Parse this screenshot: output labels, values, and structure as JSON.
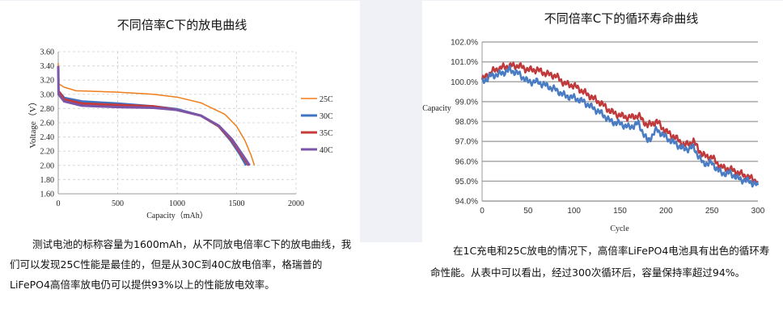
{
  "left_panel": {
    "paragraph": "测试电池的标称容量为1600mAh，从不同放电倍率C下的放电曲线，我们可以发现25C性能是最佳的，但是从30C到40C放电倍率，格瑞普的LiFePO4高倍率放电仍可以提供93%以上的性能放电效率。"
  },
  "right_panel": {
    "paragraph": "在1C充电和25C放电的情况下，高倍率LiFePO4电池具有出色的循环寿命性能。从表中可以看出，经过300次循环后，容量保持率超过94%。"
  },
  "chart_data": [
    {
      "type": "line",
      "title": "不同倍率C下的放电曲线",
      "xlabel": "Capacity（mAh）",
      "ylabel": "Voltage（V）",
      "xlim": [
        0,
        2000
      ],
      "ylim": [
        1.6,
        3.6
      ],
      "xticks": [
        "0",
        "500",
        "1000",
        "1500",
        "2000"
      ],
      "yticks": [
        "1.60",
        "1.80",
        "2.00",
        "2.20",
        "2.40",
        "2.60",
        "2.80",
        "3.00",
        "3.20",
        "3.40",
        "3.60"
      ],
      "grid": "dashed",
      "legend_position": "right",
      "series": [
        {
          "name": "25C",
          "color": "#f07d1a",
          "x": [
            0,
            2,
            50,
            150,
            500,
            800,
            1000,
            1200,
            1400,
            1500,
            1570,
            1620,
            1650
          ],
          "y": [
            3.44,
            3.15,
            3.1,
            3.05,
            3.03,
            3.0,
            2.96,
            2.88,
            2.72,
            2.55,
            2.35,
            2.15,
            2.0
          ]
        },
        {
          "name": "30C",
          "color": "#3f74c4",
          "x": [
            0,
            50,
            200,
            500,
            800,
            1000,
            1200,
            1350,
            1450,
            1530,
            1580
          ],
          "y": [
            3.05,
            2.95,
            2.9,
            2.87,
            2.83,
            2.79,
            2.7,
            2.55,
            2.35,
            2.15,
            2.0
          ]
        },
        {
          "name": "35C",
          "color": "#c63a3a",
          "x": [
            0,
            50,
            200,
            500,
            800,
            1000,
            1200,
            1350,
            1460,
            1540,
            1600
          ],
          "y": [
            3.05,
            2.93,
            2.87,
            2.85,
            2.83,
            2.78,
            2.7,
            2.55,
            2.35,
            2.15,
            2.0
          ]
        },
        {
          "name": "40C",
          "color": "#7a55a8",
          "x": [
            0,
            3,
            50,
            200,
            500,
            800,
            1000,
            1200,
            1350,
            1460,
            1550,
            1610
          ],
          "y": [
            3.4,
            3.0,
            2.9,
            2.84,
            2.82,
            2.81,
            2.78,
            2.7,
            2.56,
            2.37,
            2.15,
            2.0
          ]
        }
      ]
    },
    {
      "type": "line",
      "title": "不同倍率C下的循环寿命曲线",
      "xlabel": "Cycle",
      "ylabel": "Capacity",
      "xlim": [
        0,
        300
      ],
      "ylim": [
        94,
        102
      ],
      "xticks": [
        "0",
        "50",
        "100",
        "150",
        "200",
        "250",
        "300"
      ],
      "yticks": [
        "94.0%",
        "95.0%",
        "96.0%",
        "97.0%",
        "98.0%",
        "99.0%",
        "100.0%",
        "101.0%",
        "102.0%"
      ],
      "grid": "horizontal",
      "series": [
        {
          "color": "#c0393b",
          "x": [
            0,
            10,
            20,
            30,
            40,
            50,
            60,
            70,
            80,
            90,
            100,
            110,
            120,
            130,
            140,
            150,
            160,
            170,
            180,
            190,
            200,
            210,
            220,
            230,
            240,
            250,
            260,
            270,
            280,
            290,
            300
          ],
          "y": [
            100.1,
            100.5,
            100.7,
            100.8,
            100.8,
            100.6,
            100.6,
            100.4,
            100.3,
            99.9,
            99.8,
            99.5,
            99.2,
            98.9,
            98.5,
            98.3,
            98.2,
            98.3,
            97.8,
            98.0,
            97.5,
            97.2,
            96.8,
            97.0,
            96.3,
            96.2,
            95.7,
            95.6,
            95.4,
            95.2,
            95.0
          ]
        },
        {
          "color": "#4a7cc4",
          "x": [
            0,
            10,
            20,
            30,
            40,
            50,
            60,
            70,
            80,
            90,
            100,
            110,
            120,
            130,
            140,
            150,
            160,
            170,
            180,
            190,
            200,
            210,
            220,
            230,
            240,
            250,
            260,
            270,
            280,
            290,
            300
          ],
          "y": [
            100.0,
            100.3,
            100.4,
            100.6,
            100.4,
            100.0,
            100.0,
            99.8,
            99.6,
            99.3,
            99.2,
            99.0,
            98.7,
            98.4,
            98.0,
            97.9,
            97.7,
            97.9,
            97.0,
            97.6,
            97.2,
            96.9,
            96.6,
            96.7,
            95.9,
            95.9,
            95.4,
            95.4,
            95.1,
            95.0,
            94.8
          ]
        }
      ]
    }
  ]
}
